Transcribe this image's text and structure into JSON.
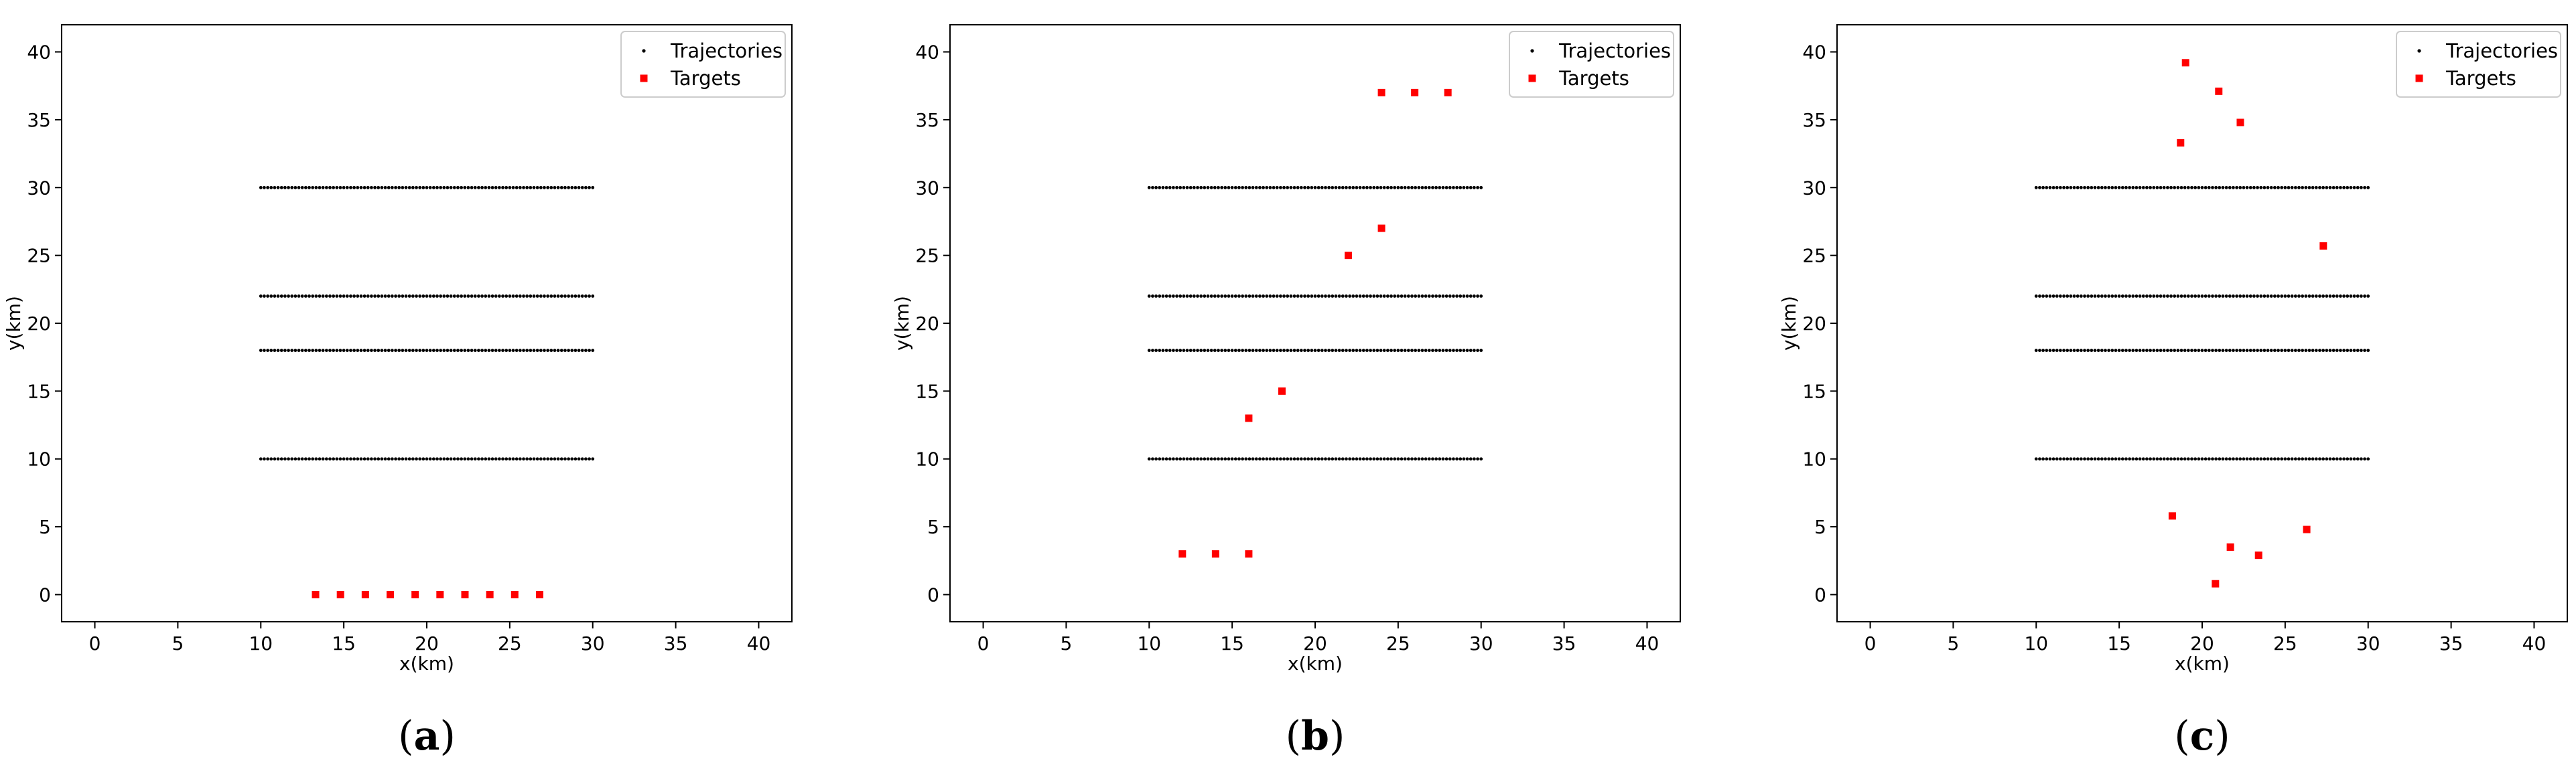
{
  "chart_data": [
    {
      "type": "scatter",
      "panel_label": "a",
      "xlabel": "x(km)",
      "ylabel": "y(km)",
      "xlim": [
        -2,
        42
      ],
      "ylim": [
        -2,
        42
      ],
      "xticks": [
        0,
        5,
        10,
        15,
        20,
        25,
        30,
        35,
        40
      ],
      "yticks": [
        0,
        5,
        10,
        15,
        20,
        25,
        30,
        35,
        40
      ],
      "legend_position": "top-right",
      "grid": false,
      "series": [
        {
          "name": "Trajectories",
          "marker": "dot",
          "color": "#000000",
          "lines": [
            {
              "x_from": 10,
              "x_to": 30,
              "y": 10
            },
            {
              "x_from": 10,
              "x_to": 30,
              "y": 18
            },
            {
              "x_from": 10,
              "x_to": 30,
              "y": 22
            },
            {
              "x_from": 10,
              "x_to": 30,
              "y": 30
            }
          ]
        },
        {
          "name": "Targets",
          "marker": "square",
          "color": "#ff0000",
          "x": [
            13.3,
            14.8,
            16.3,
            17.8,
            19.3,
            20.8,
            22.3,
            23.8,
            25.3,
            26.8
          ],
          "y": [
            0,
            0,
            0,
            0,
            0,
            0,
            0,
            0,
            0,
            0
          ]
        }
      ]
    },
    {
      "type": "scatter",
      "panel_label": "b",
      "xlabel": "x(km)",
      "ylabel": "y(km)",
      "xlim": [
        -2,
        42
      ],
      "ylim": [
        -2,
        42
      ],
      "xticks": [
        0,
        5,
        10,
        15,
        20,
        25,
        30,
        35,
        40
      ],
      "yticks": [
        0,
        5,
        10,
        15,
        20,
        25,
        30,
        35,
        40
      ],
      "legend_position": "top-right",
      "grid": false,
      "series": [
        {
          "name": "Trajectories",
          "marker": "dot",
          "color": "#000000",
          "lines": [
            {
              "x_from": 10,
              "x_to": 30,
              "y": 10
            },
            {
              "x_from": 10,
              "x_to": 30,
              "y": 18
            },
            {
              "x_from": 10,
              "x_to": 30,
              "y": 22
            },
            {
              "x_from": 10,
              "x_to": 30,
              "y": 30
            }
          ]
        },
        {
          "name": "Targets",
          "marker": "square",
          "color": "#ff0000",
          "x": [
            12,
            14,
            16,
            16,
            18,
            22,
            24,
            24,
            26,
            28
          ],
          "y": [
            3,
            3,
            3,
            13,
            15,
            25,
            27,
            37,
            37,
            37
          ]
        }
      ]
    },
    {
      "type": "scatter",
      "panel_label": "c",
      "xlabel": "x(km)",
      "ylabel": "y(km)",
      "xlim": [
        -2,
        42
      ],
      "ylim": [
        -2,
        42
      ],
      "xticks": [
        0,
        5,
        10,
        15,
        20,
        25,
        30,
        35,
        40
      ],
      "yticks": [
        0,
        5,
        10,
        15,
        20,
        25,
        30,
        35,
        40
      ],
      "legend_position": "top-right",
      "grid": false,
      "series": [
        {
          "name": "Trajectories",
          "marker": "dot",
          "color": "#000000",
          "lines": [
            {
              "x_from": 10,
              "x_to": 30,
              "y": 10
            },
            {
              "x_from": 10,
              "x_to": 30,
              "y": 18
            },
            {
              "x_from": 10,
              "x_to": 30,
              "y": 22
            },
            {
              "x_from": 10,
              "x_to": 30,
              "y": 30
            }
          ]
        },
        {
          "name": "Targets",
          "marker": "square",
          "color": "#ff0000",
          "x": [
            19,
            21,
            22.3,
            18.7,
            27.3,
            18.2,
            26.3,
            21.7,
            23.4,
            20.8
          ],
          "y": [
            39.2,
            37.1,
            34.8,
            33.3,
            25.7,
            5.8,
            4.8,
            3.5,
            2.9,
            0.8
          ]
        }
      ]
    }
  ]
}
